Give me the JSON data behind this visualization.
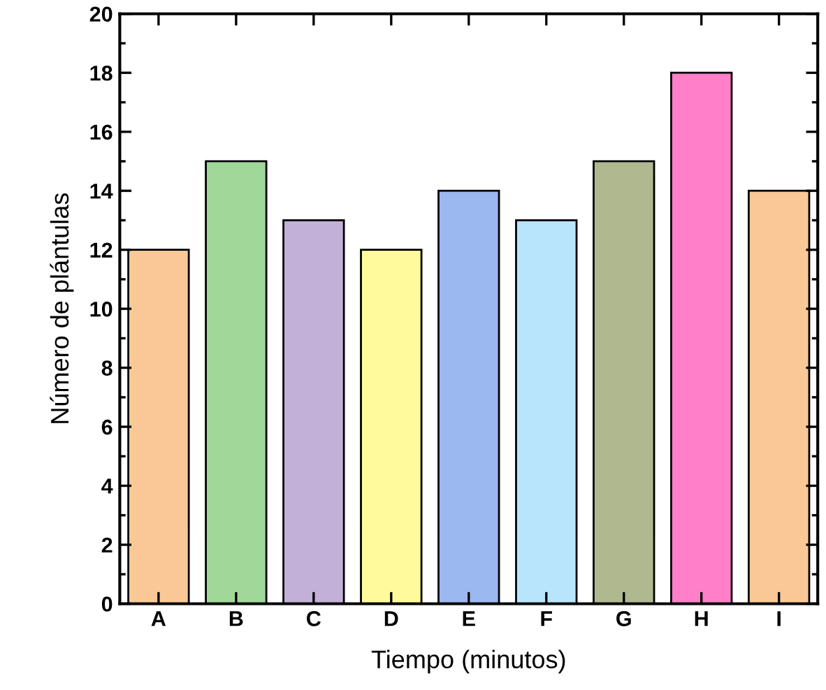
{
  "chart_data": {
    "type": "bar",
    "xlabel": "Tiempo (minutos)",
    "ylabel": "Número de plántulas",
    "categories": [
      "A",
      "B",
      "C",
      "D",
      "E",
      "F",
      "G",
      "H",
      "I"
    ],
    "values": [
      12,
      15,
      13,
      12,
      14,
      13,
      15,
      18,
      14
    ],
    "colors": [
      "#f9c896",
      "#a0d89a",
      "#c2b0d8",
      "#fffb9c",
      "#9cb8f0",
      "#b8e4fc",
      "#b0b890",
      "#ff7fc8",
      "#f9c896"
    ],
    "ylim": [
      0,
      20
    ],
    "yticks": [
      0,
      2,
      4,
      6,
      8,
      10,
      12,
      14,
      16,
      18,
      20
    ],
    "grid": false,
    "legend": false
  }
}
